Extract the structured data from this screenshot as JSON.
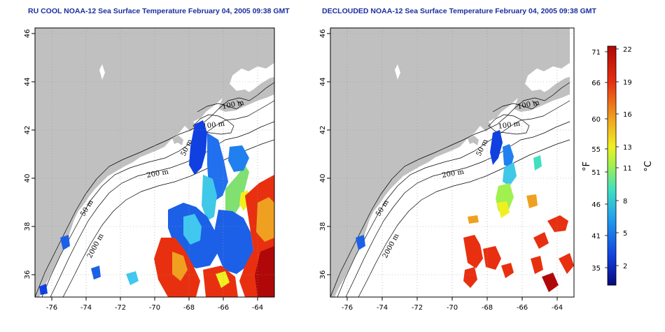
{
  "panels": [
    {
      "title": "RU COOL NOAA-12 Sea Surface Temperature February 04, 2005 09:38 GMT",
      "coverage": "full"
    },
    {
      "title": "DECLOUDED NOAA-12 Sea Surface Temperature February 04, 2005 09:38 GMT",
      "coverage": "declouded"
    }
  ],
  "axes": {
    "lon_ticks": [
      "-76",
      "-74",
      "-72",
      "-70",
      "-68",
      "-66",
      "-64"
    ],
    "lat_ticks": [
      "46",
      "44",
      "42",
      "40",
      "38",
      "36"
    ],
    "lon_range": [
      -77,
      -63
    ],
    "lat_range": [
      35,
      46
    ],
    "grid": "dotted"
  },
  "contour_labels": [
    "100 m",
    "100 m",
    "50 m",
    "200 m",
    "50 m",
    "2000 m"
  ],
  "colorbar": {
    "fahrenheit_ticks": [
      "71",
      "66",
      "60",
      "55",
      "51",
      "46",
      "41",
      "35"
    ],
    "celsius_ticks": [
      "22",
      "19",
      "16",
      "13",
      "11",
      "8",
      "5",
      "2"
    ],
    "fahrenheit_unit": "°F",
    "celsius_unit": "°C",
    "colors": [
      "#08087a",
      "#1040e0",
      "#20a0f0",
      "#40e0c0",
      "#a0f050",
      "#f0f020",
      "#f0a020",
      "#e83010",
      "#b00808"
    ]
  },
  "colors": {
    "land": "#c0c0c0",
    "title": "#1a2f9e"
  }
}
